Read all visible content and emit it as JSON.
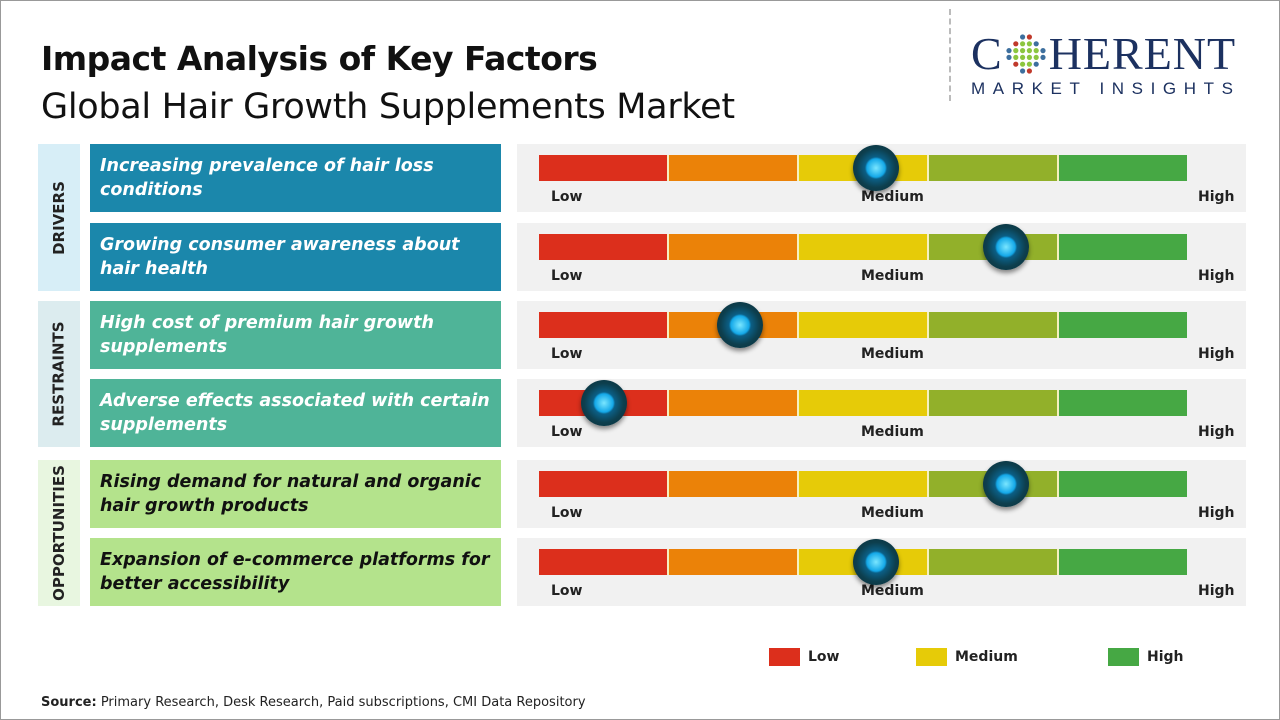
{
  "header": {
    "title": "Impact Analysis of Key Factors",
    "subtitle": "Global Hair Growth Supplements Market"
  },
  "logo": {
    "main_left": "C",
    "main_right": "HERENT",
    "sub": "MARKET INSIGHTS",
    "brand_color": "#1c3160"
  },
  "chart_data": {
    "type": "gauge",
    "scale_labels": {
      "low": "Low",
      "medium": "Medium",
      "high": "High"
    },
    "scale_range": [
      0,
      100
    ],
    "segment_colors": [
      "#dc2f1c",
      "#eb8208",
      "#e6cb08",
      "#92b02a",
      "#46a844"
    ],
    "categories": [
      {
        "name": "DRIVERS",
        "color": "#1b87ab",
        "text_color": "#ffffff",
        "label_bg": "#d7eef7",
        "factors": [
          {
            "label": "Increasing prevalence of hair loss conditions",
            "value": 52
          },
          {
            "label": "Growing consumer awareness about hair health",
            "value": 72
          }
        ]
      },
      {
        "name": "RESTRAINTS",
        "color": "#4fb498",
        "text_color": "#ffffff",
        "label_bg": "#dcecef",
        "factors": [
          {
            "label": "High cost of premium hair growth supplements",
            "value": 31
          },
          {
            "label": "Adverse effects associated with certain supplements",
            "value": 10
          }
        ]
      },
      {
        "name": "OPPORTUNITIES",
        "color": "#b4e38c",
        "text_color": "#111111",
        "label_bg": "#e8f6e0",
        "factors": [
          {
            "label": "Rising demand for natural and organic hair growth products",
            "value": 72
          },
          {
            "label": "Expansion of e-commerce platforms for better accessibility",
            "value": 52
          }
        ]
      }
    ],
    "legend": [
      {
        "label": "Low",
        "color": "#dc2f1c"
      },
      {
        "label": "Medium",
        "color": "#e6cb08"
      },
      {
        "label": "High",
        "color": "#46a844"
      }
    ]
  },
  "footer": {
    "source_label": "Source:",
    "source_text": " Primary Research, Desk Research, Paid subscriptions, CMI Data Repository"
  }
}
